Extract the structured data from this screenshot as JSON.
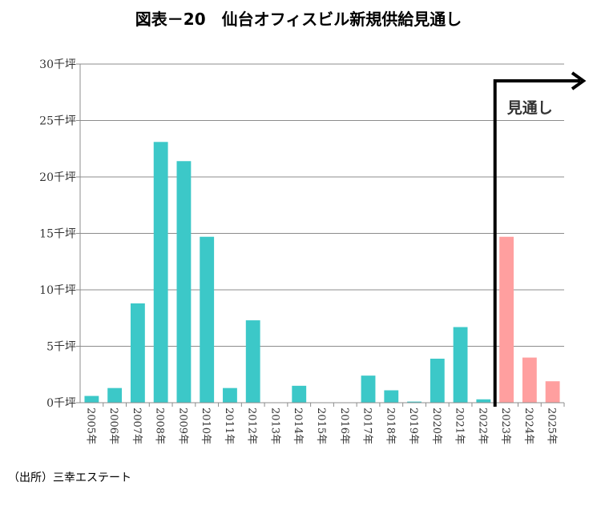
{
  "chart_data": {
    "type": "bar",
    "title": "図表－20　仙台オフィスビル新規供給見通し",
    "ylabel": "",
    "xlabel": "",
    "ylim": [
      0,
      30
    ],
    "grid": true,
    "y_ticks": [
      "0千坪",
      "5千坪",
      "10千坪",
      "15千坪",
      "20千坪",
      "25千坪",
      "30千坪"
    ],
    "categories": [
      "2005年",
      "2006年",
      "2007年",
      "2008年",
      "2009年",
      "2010年",
      "2011年",
      "2012年",
      "2013年",
      "2014年",
      "2015年",
      "2016年",
      "2017年",
      "2018年",
      "2019年",
      "2020年",
      "2021年",
      "2022年",
      "2023年",
      "2024年",
      "2025年"
    ],
    "values": [
      0.6,
      1.3,
      8.8,
      23.1,
      21.4,
      14.7,
      1.3,
      7.3,
      0,
      1.5,
      0,
      0,
      2.4,
      1.1,
      0.1,
      3.9,
      6.7,
      0.3,
      14.7,
      4.0,
      1.9
    ],
    "forecast_from": "2023年",
    "annotation": "見通し",
    "colors": {
      "actual": "#3cc8c8",
      "forecast": "#ff9f9f"
    }
  },
  "source": "（出所）三幸エステート"
}
